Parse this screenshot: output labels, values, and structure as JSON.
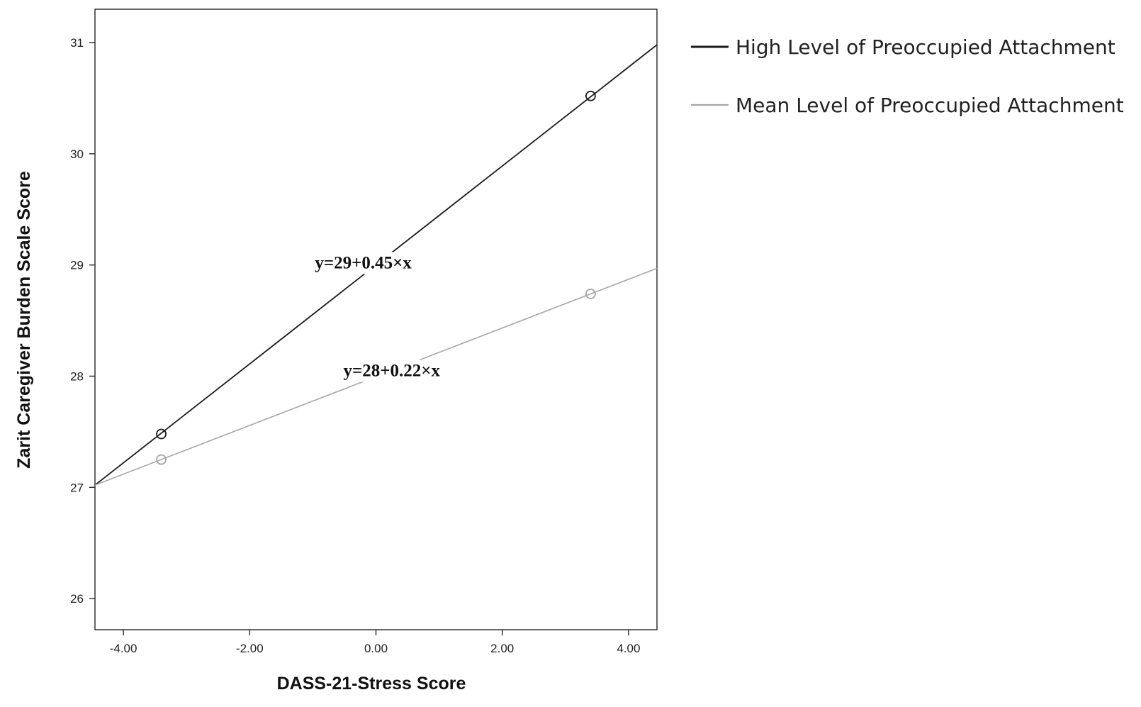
{
  "chart_data": {
    "type": "line",
    "xlabel": "DASS-21-Stress Score",
    "ylabel": "Zarit Caregiver Burden Scale Score",
    "xlim": [
      -4.45,
      4.45
    ],
    "ylim": [
      25.72,
      31.3
    ],
    "x_ticks": [
      {
        "value": -4.0,
        "label": "-4.00"
      },
      {
        "value": -2.0,
        "label": "-2.00"
      },
      {
        "value": 0.0,
        "label": "0.00"
      },
      {
        "value": 2.0,
        "label": "2.00"
      },
      {
        "value": 4.0,
        "label": "4.00"
      }
    ],
    "y_ticks": [
      {
        "value": 26,
        "label": "26"
      },
      {
        "value": 27,
        "label": "27"
      },
      {
        "value": 28,
        "label": "28"
      },
      {
        "value": 29,
        "label": "29"
      },
      {
        "value": 30,
        "label": "30"
      },
      {
        "value": 31,
        "label": "31"
      }
    ],
    "grid": false,
    "legend_position": "right",
    "series": [
      {
        "name": "High Level of Preoccupied Attachment",
        "color": "#1a1a1a",
        "line": {
          "x": [
            -4.45,
            4.45
          ],
          "y": [
            27.02,
            30.98
          ]
        },
        "points": {
          "x": [
            -3.4,
            3.4
          ],
          "y": [
            27.48,
            30.52
          ]
        },
        "equation": "y=29+0.45×x",
        "equation_at": {
          "x": -0.2,
          "y": 28.97
        }
      },
      {
        "name": "Mean Level of Preoccupied Attachment",
        "color": "#a6a6a6",
        "line": {
          "x": [
            -4.45,
            4.45
          ],
          "y": [
            27.02,
            28.97
          ]
        },
        "points": {
          "x": [
            -3.4,
            3.4
          ],
          "y": [
            27.25,
            28.74
          ]
        },
        "equation": "y=28+0.22×x",
        "equation_at": {
          "x": 0.25,
          "y": 28.0
        }
      }
    ]
  }
}
